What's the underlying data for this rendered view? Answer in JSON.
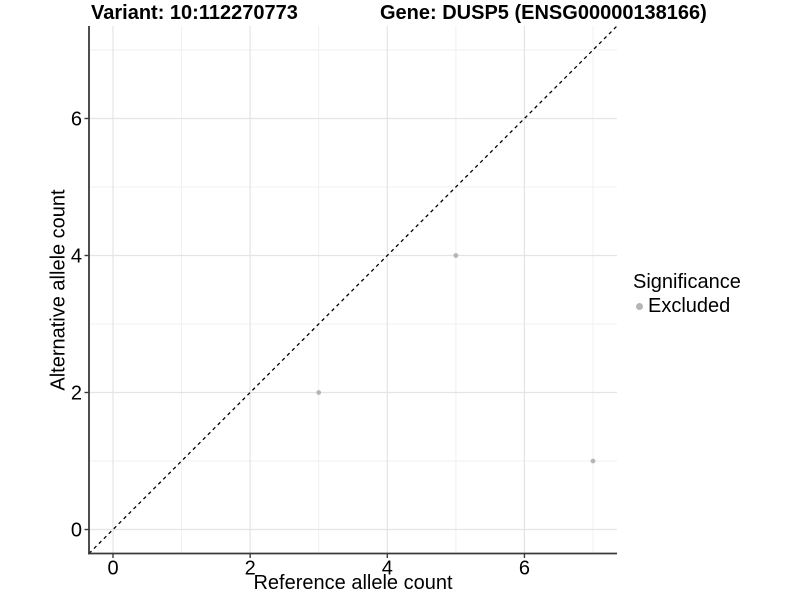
{
  "titles": {
    "variant": "Variant: 10:112270773",
    "gene": "Gene: DUSP5 (ENSG00000138166)"
  },
  "chart_data": {
    "type": "scatter",
    "xlabel": "Reference allele count",
    "ylabel": "Alternative allele count",
    "xlim": [
      -0.35,
      7.35
    ],
    "ylim": [
      -0.35,
      7.35
    ],
    "x_ticks": [
      0,
      2,
      4,
      6
    ],
    "y_ticks": [
      0,
      2,
      4,
      6
    ],
    "x_tick_labels": [
      "0",
      "2",
      "4",
      "6"
    ],
    "y_tick_labels": [
      "0",
      "2",
      "4",
      "6"
    ],
    "minor_gridlines": [
      1,
      3,
      5,
      7
    ],
    "grid": true,
    "points": [
      {
        "x": 3,
        "y": 2,
        "significance": "Excluded"
      },
      {
        "x": 5,
        "y": 4,
        "significance": "Excluded"
      },
      {
        "x": 7,
        "y": 1,
        "significance": "Excluded"
      }
    ],
    "reference_line": {
      "kind": "identity",
      "slope": 1,
      "intercept": 0,
      "style": "dashed",
      "color": "#000000"
    },
    "colors": {
      "Excluded": "#b5b5b5",
      "axis": "#3a3a3a",
      "grid_major": "#e4e4e4",
      "grid_minor": "#f1f1f1",
      "tick_label": "#000000"
    }
  },
  "legend": {
    "title": "Significance",
    "position": "right",
    "items": [
      {
        "label": "Excluded",
        "color": "#b5b5b5"
      }
    ]
  }
}
